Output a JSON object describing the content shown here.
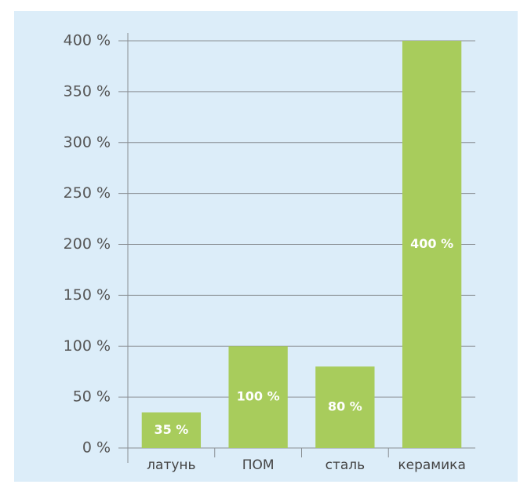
{
  "chart_data": {
    "type": "bar",
    "categories": [
      "латунь",
      "ПОМ",
      "сталь",
      "керамика"
    ],
    "values": [
      35,
      100,
      80,
      400
    ],
    "value_labels": [
      "35 %",
      "100 %",
      "80 %",
      "400 %"
    ],
    "color": "#a8cc5c",
    "ylim": [
      0,
      400
    ],
    "yticks": [
      {
        "value": 0,
        "label": "0 %"
      },
      {
        "value": 50,
        "label": "50 %"
      },
      {
        "value": 100,
        "label": "100 %"
      },
      {
        "value": 150,
        "label": "150 %"
      },
      {
        "value": 200,
        "label": "200 %"
      },
      {
        "value": 250,
        "label": "250 %"
      },
      {
        "value": 300,
        "label": "300 %"
      },
      {
        "value": 350,
        "label": "350 %"
      },
      {
        "value": 400,
        "label": "400 %"
      }
    ],
    "grid": true
  }
}
